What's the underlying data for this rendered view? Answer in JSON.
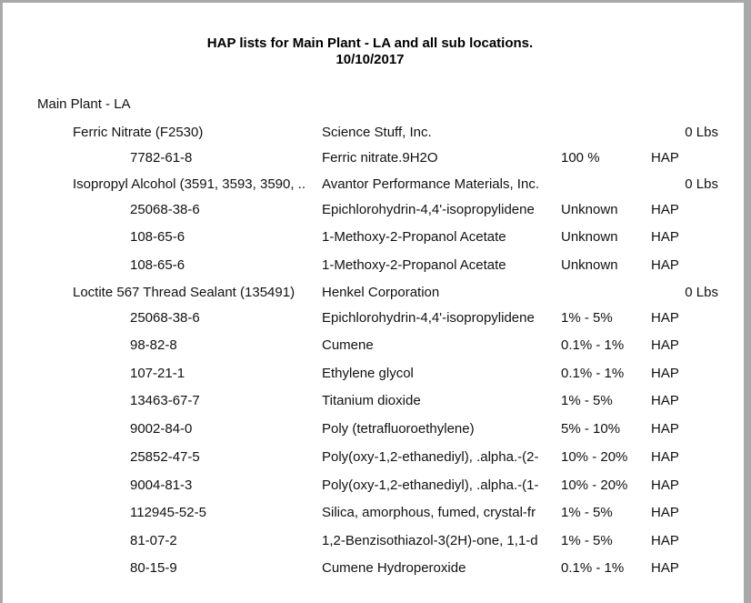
{
  "report": {
    "title": "HAP lists for Main Plant - LA and all sub locations.",
    "date": "10/10/2017",
    "location": "Main Plant - LA",
    "products": [
      {
        "name": "Ferric Nitrate (F2530)",
        "supplier": "Science Stuff, Inc.",
        "amount": "0 Lbs",
        "components": [
          {
            "cas": "7782-61-8",
            "chemical": "Ferric nitrate.9H2O",
            "percent": "100 %",
            "type": "HAP"
          }
        ]
      },
      {
        "name": "Isopropyl Alcohol (3591, 3593, 3590, ..",
        "supplier": "Avantor Performance Materials, Inc.",
        "amount": "0 Lbs",
        "components": [
          {
            "cas": "25068-38-6",
            "chemical": "Epichlorohydrin-4,4'-isopropylidene",
            "percent": "Unknown",
            "type": "HAP"
          },
          {
            "cas": "108-65-6",
            "chemical": "1-Methoxy-2-Propanol Acetate",
            "percent": "Unknown",
            "type": "HAP"
          },
          {
            "cas": "108-65-6",
            "chemical": "1-Methoxy-2-Propanol Acetate",
            "percent": "Unknown",
            "type": "HAP"
          }
        ]
      },
      {
        "name": "Loctite 567 Thread Sealant (135491)",
        "supplier": "Henkel Corporation",
        "amount": "0 Lbs",
        "components": [
          {
            "cas": "25068-38-6",
            "chemical": "Epichlorohydrin-4,4'-isopropylidene",
            "percent": "1% - 5%",
            "type": "HAP"
          },
          {
            "cas": "98-82-8",
            "chemical": "Cumene",
            "percent": "0.1% - 1%",
            "type": "HAP"
          },
          {
            "cas": "107-21-1",
            "chemical": "Ethylene glycol",
            "percent": "0.1% - 1%",
            "type": "HAP"
          },
          {
            "cas": "13463-67-7",
            "chemical": "Titanium dioxide",
            "percent": "1% - 5%",
            "type": "HAP"
          },
          {
            "cas": "9002-84-0",
            "chemical": "Poly (tetrafluoroethylene)",
            "percent": "5% - 10%",
            "type": "HAP"
          },
          {
            "cas": "25852-47-5",
            "chemical": "Poly(oxy-1,2-ethanediyl), .alpha.-(2-",
            "percent": "10% - 20%",
            "type": "HAP"
          },
          {
            "cas": "9004-81-3",
            "chemical": "Poly(oxy-1,2-ethanediyl), .alpha.-(1-",
            "percent": "10% - 20%",
            "type": "HAP"
          },
          {
            "cas": "112945-52-5",
            "chemical": "Silica, amorphous, fumed, crystal-fr",
            "percent": "1% - 5%",
            "type": "HAP"
          },
          {
            "cas": "81-07-2",
            "chemical": "1,2-Benzisothiazol-3(2H)-one, 1,1-d",
            "percent": "1% - 5%",
            "type": "HAP"
          },
          {
            "cas": "80-15-9",
            "chemical": "Cumene Hydroperoxide",
            "percent": "0.1% - 1%",
            "type": "HAP"
          }
        ]
      }
    ]
  }
}
